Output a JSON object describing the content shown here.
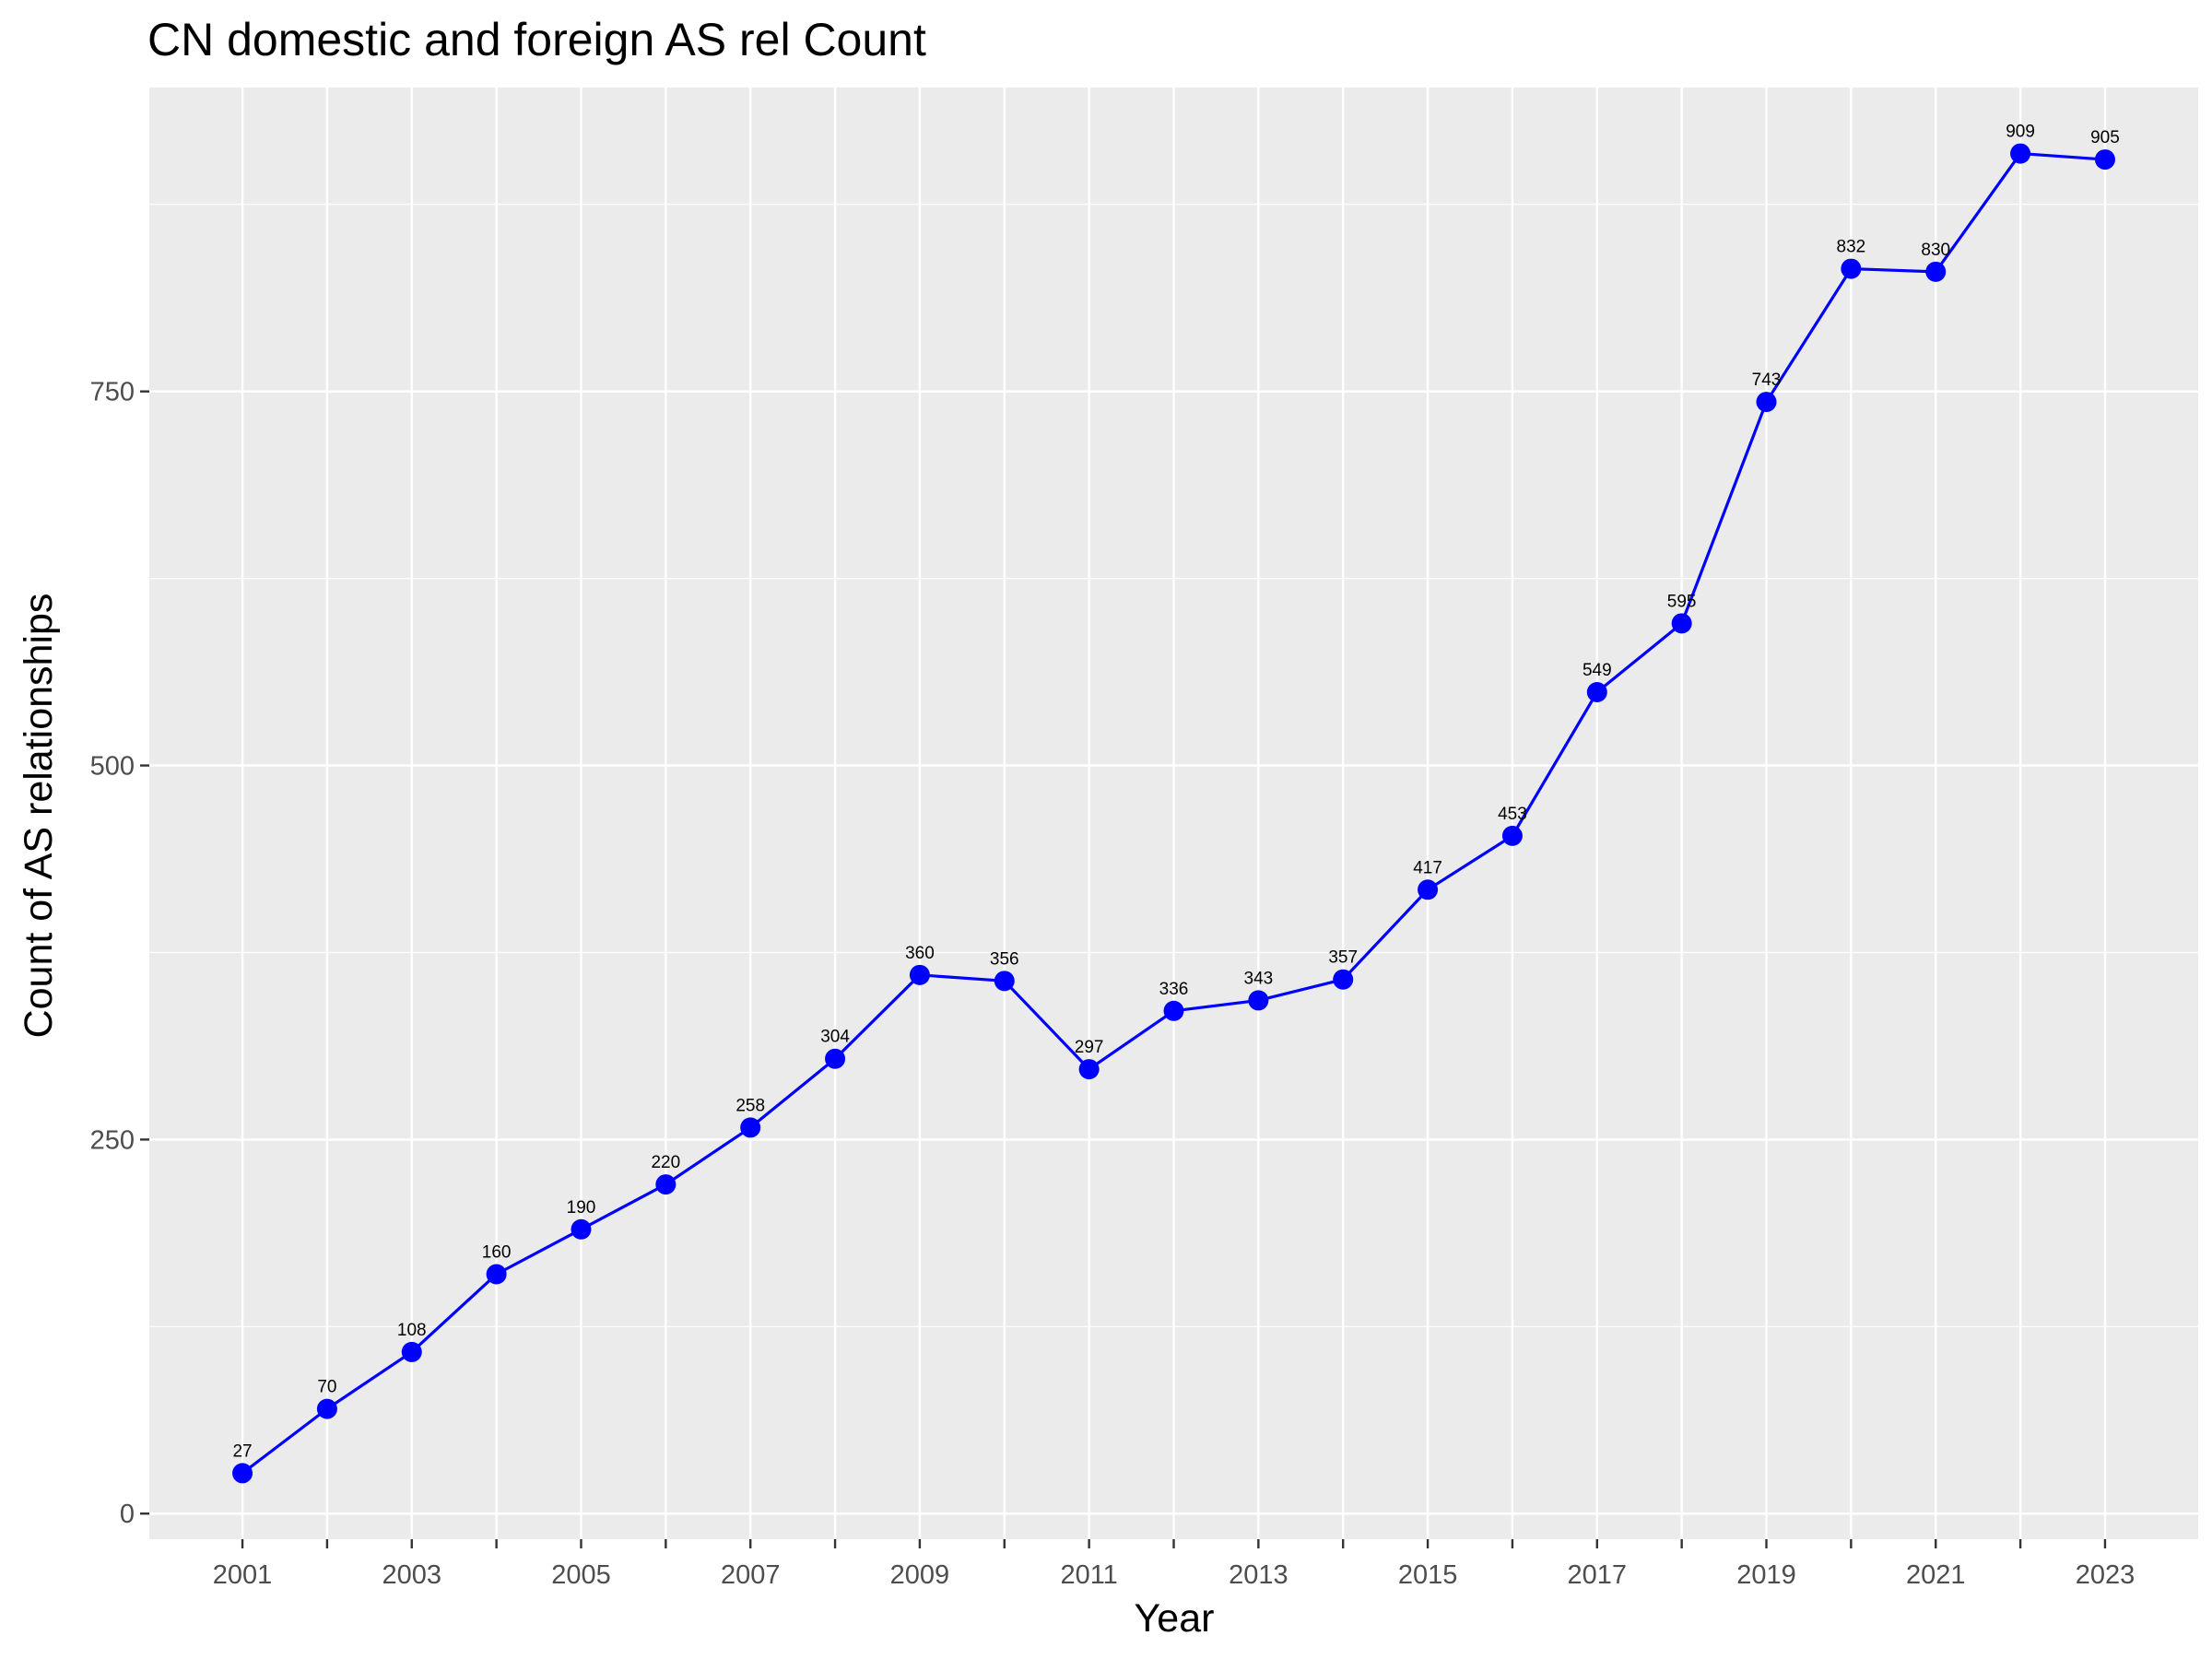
{
  "chart_data": {
    "type": "line",
    "title": "CN domestic and foreign AS rel Count",
    "xlabel": "Year",
    "ylabel": "Count of AS relationships",
    "x": [
      2001,
      2002,
      2003,
      2004,
      2005,
      2006,
      2007,
      2008,
      2009,
      2010,
      2011,
      2012,
      2013,
      2014,
      2015,
      2016,
      2017,
      2018,
      2019,
      2020,
      2021,
      2022,
      2023
    ],
    "series": [
      {
        "values": [
          27,
          70,
          108,
          160,
          190,
          220,
          258,
          304,
          360,
          356,
          297,
          336,
          343,
          357,
          417,
          453,
          549,
          595,
          743,
          832,
          830,
          909,
          905
        ]
      }
    ],
    "x_ticks": [
      "2001",
      "2003",
      "2005",
      "2007",
      "2009",
      "2011",
      "2013",
      "2015",
      "2017",
      "2019",
      "2021",
      "2023"
    ],
    "y_ticks": [
      "0",
      "250",
      "500",
      "750"
    ],
    "xlim": [
      1999.9,
      2024.1
    ],
    "ylim": [
      -17.1,
      953.1
    ],
    "grid": true,
    "legend": "none",
    "colors": {
      "series": "#0000ff",
      "panel": "#ebebeb",
      "grid": "#ffffff",
      "tick_text": "#4d4d4d"
    }
  }
}
